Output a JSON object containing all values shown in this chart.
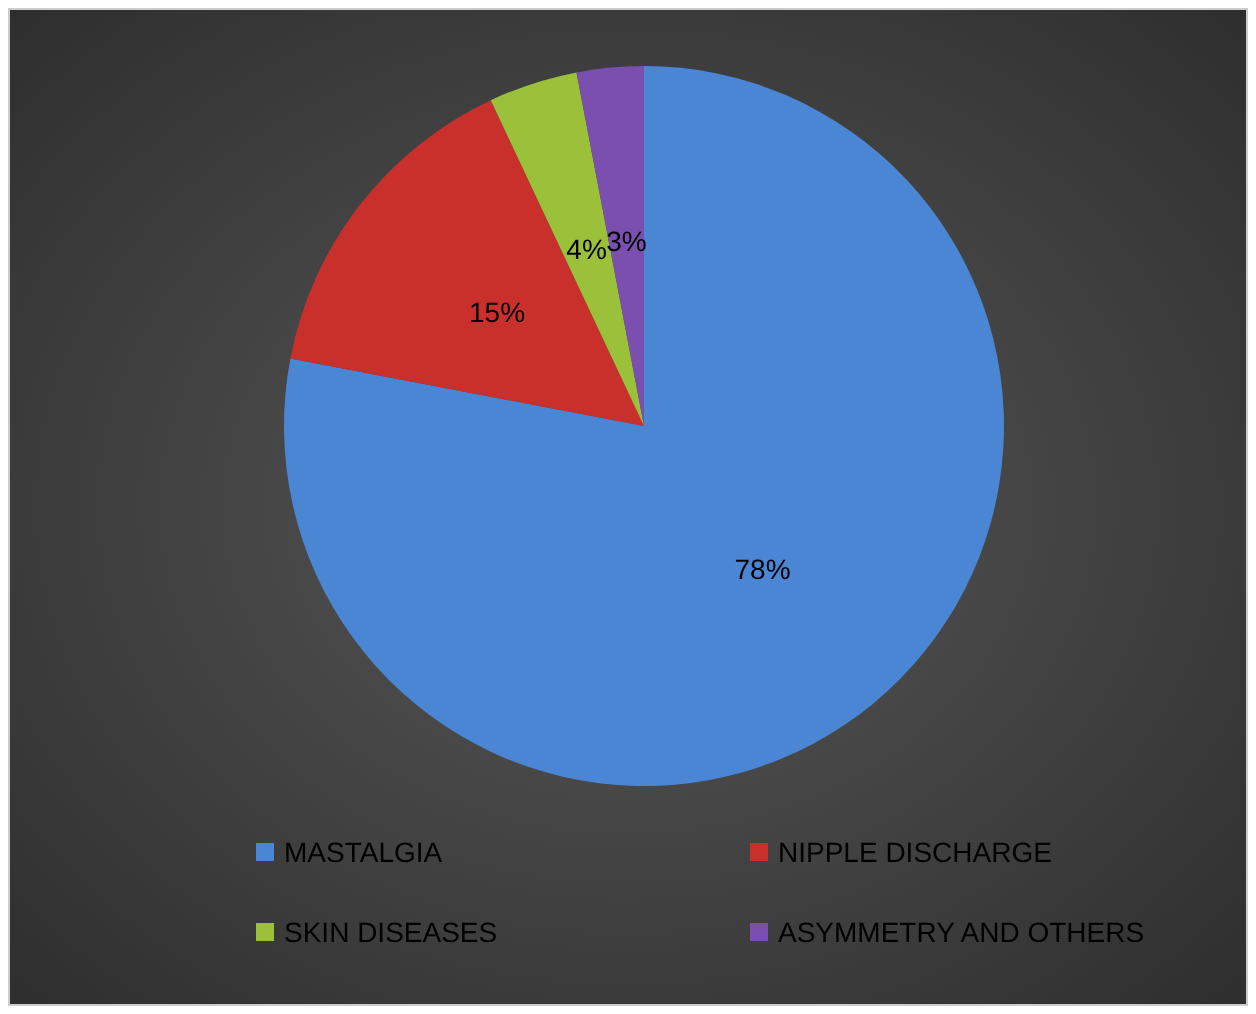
{
  "chart_data": {
    "type": "pie",
    "categories": [
      "MASTALGIA",
      "NIPPLE DISCHARGE",
      "SKIN DISEASES",
      "ASYMMETRY AND OTHERS"
    ],
    "values": [
      78,
      15,
      4,
      3
    ],
    "colors": [
      "#4a86d4",
      "#c9302c",
      "#9bc03a",
      "#7a4fb0"
    ],
    "value_labels": [
      "78%",
      "15%",
      "4%",
      "3%"
    ],
    "legend": "bottom"
  }
}
